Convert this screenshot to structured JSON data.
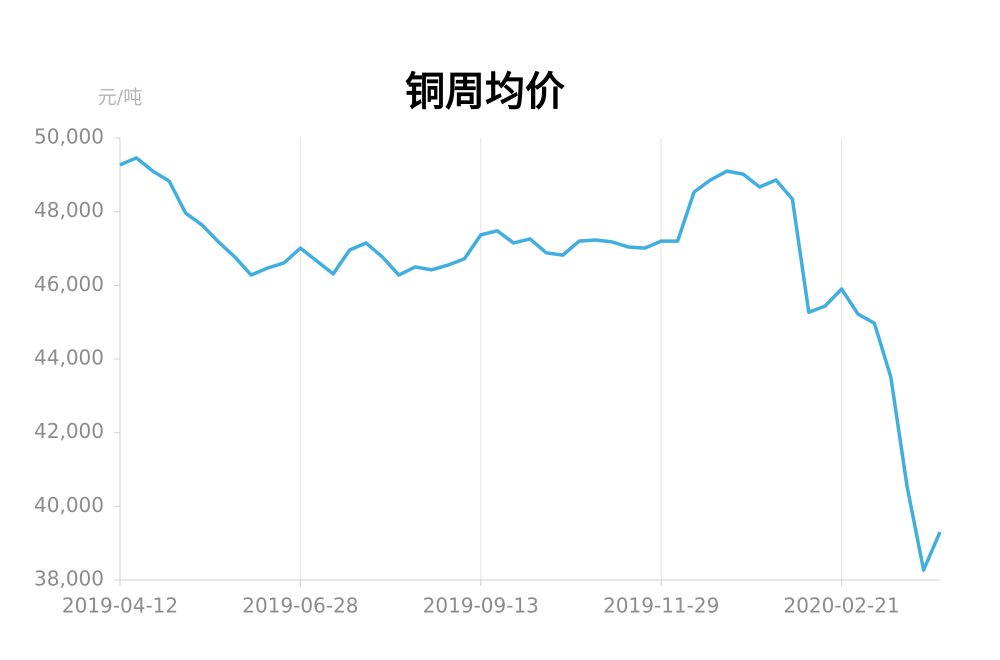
{
  "chart_data": {
    "type": "line",
    "title": "铜周均价",
    "y_label": "元/吨",
    "categories": [
      "2019-04-12",
      null,
      null,
      null,
      null,
      null,
      null,
      null,
      null,
      null,
      null,
      "2019-06-28",
      null,
      null,
      null,
      null,
      null,
      null,
      null,
      null,
      null,
      null,
      "2019-09-13",
      null,
      null,
      null,
      null,
      null,
      null,
      null,
      null,
      null,
      null,
      "2019-11-29",
      null,
      null,
      null,
      null,
      null,
      null,
      null,
      null,
      null,
      null,
      "2020-02-21",
      null,
      null,
      null,
      null,
      null,
      null
    ],
    "series": [
      {
        "name": "铜周均价",
        "color": "#41aee0",
        "values": [
          49270,
          49460,
          49100,
          48830,
          47960,
          47640,
          47180,
          46770,
          46280,
          46470,
          46610,
          47010,
          46660,
          46310,
          46960,
          47150,
          46770,
          46280,
          46500,
          46420,
          46550,
          46720,
          47370,
          47480,
          47150,
          47260,
          46880,
          46820,
          47200,
          47230,
          47180,
          47040,
          47010,
          47200,
          47200,
          48530,
          48860,
          49100,
          49020,
          48670,
          48860,
          48340,
          45270,
          45440,
          45900,
          45220,
          44970,
          43510,
          40520,
          38270,
          39300
        ]
      }
    ],
    "ylim": [
      38000,
      50000
    ],
    "yticks": [
      {
        "value": 38000,
        "label": "38,000"
      },
      {
        "value": 40000,
        "label": "40,000"
      },
      {
        "value": 42000,
        "label": "42,000"
      },
      {
        "value": 44000,
        "label": "44,000"
      },
      {
        "value": 46000,
        "label": "46,000"
      },
      {
        "value": 48000,
        "label": "48,000"
      },
      {
        "value": 50000,
        "label": "50,000"
      }
    ],
    "grid": true
  }
}
